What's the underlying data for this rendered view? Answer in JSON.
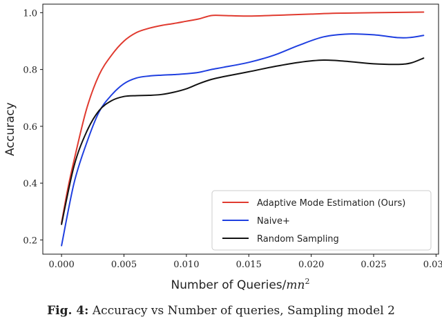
{
  "chart_data": {
    "type": "line",
    "xlabel": "Number of Queries/mn²",
    "ylabel": "Accuracy",
    "xlim": [
      -0.0015,
      0.0302
    ],
    "ylim": [
      0.15,
      1.03
    ],
    "xticks": [
      0.0,
      0.005,
      0.01,
      0.015,
      0.02,
      0.025,
      0.03
    ],
    "xtick_labels": [
      "0.000",
      "0.005",
      "0.010",
      "0.015",
      "0.020",
      "0.025",
      "0.030"
    ],
    "yticks": [
      0.2,
      0.4,
      0.6,
      0.8,
      1.0
    ],
    "ytick_labels": [
      "0.2",
      "0.4",
      "0.6",
      "0.8",
      "1.0"
    ],
    "grid": false,
    "legend_position": "lower-right",
    "series": [
      {
        "name": "Adaptive Mode Estimation (Ours)",
        "color": "#e03a2f",
        "x": [
          0,
          0.0005,
          0.001,
          0.002,
          0.003,
          0.004,
          0.005,
          0.006,
          0.007,
          0.008,
          0.009,
          0.01,
          0.011,
          0.012,
          0.013,
          0.015,
          0.018,
          0.02,
          0.022,
          0.025,
          0.029
        ],
        "y": [
          0.26,
          0.38,
          0.48,
          0.66,
          0.78,
          0.85,
          0.9,
          0.93,
          0.945,
          0.955,
          0.962,
          0.97,
          0.978,
          0.99,
          0.99,
          0.988,
          0.992,
          0.995,
          0.998,
          1.0,
          1.002
        ]
      },
      {
        "name": "Naive+",
        "color": "#1f3fe0",
        "x": [
          0,
          0.001,
          0.002,
          0.003,
          0.004,
          0.005,
          0.006,
          0.007,
          0.008,
          0.009,
          0.01,
          0.011,
          0.012,
          0.013,
          0.015,
          0.017,
          0.019,
          0.021,
          0.023,
          0.025,
          0.027,
          0.028,
          0.029
        ],
        "y": [
          0.18,
          0.4,
          0.54,
          0.65,
          0.71,
          0.75,
          0.77,
          0.777,
          0.78,
          0.782,
          0.785,
          0.79,
          0.8,
          0.808,
          0.825,
          0.85,
          0.885,
          0.915,
          0.925,
          0.922,
          0.912,
          0.913,
          0.92
        ]
      },
      {
        "name": "Random Sampling",
        "color": "#111111",
        "x": [
          0,
          0.001,
          0.002,
          0.003,
          0.004,
          0.005,
          0.006,
          0.007,
          0.008,
          0.009,
          0.01,
          0.011,
          0.012,
          0.013,
          0.015,
          0.017,
          0.019,
          0.021,
          0.023,
          0.025,
          0.027,
          0.028,
          0.029
        ],
        "y": [
          0.255,
          0.46,
          0.58,
          0.655,
          0.69,
          0.705,
          0.708,
          0.709,
          0.712,
          0.72,
          0.732,
          0.75,
          0.765,
          0.775,
          0.792,
          0.81,
          0.825,
          0.833,
          0.828,
          0.82,
          0.818,
          0.823,
          0.84
        ]
      }
    ]
  },
  "caption": {
    "label": "Fig. 4:",
    "text": "Accuracy vs Number of queries, Sampling model 2"
  }
}
